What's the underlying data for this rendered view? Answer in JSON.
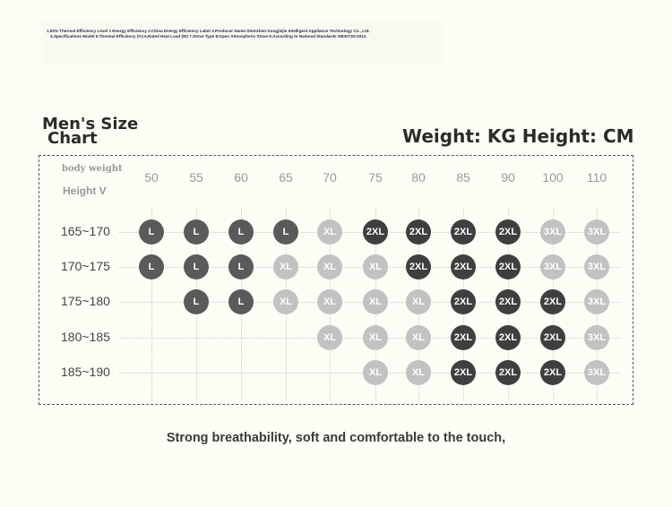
{
  "fineprint": [
    "1.83% Thermal Efficiency Level 1 Energy Efficiency 2.China Energy Efficiency Label 3.Producer Name:Shenzhen Kongjiejie Intelligent Appliance Technology Co., Ltd.",
    "4.Specifications Model 5.Thermal Efficiency (%) 6.Rated Heat Load (W) 7.Stove Type 8.Open Atmospheric Stove 9.According to National Standards GB30720-2014"
  ],
  "title_line1": "Men's Size",
  "title_line2": "Chart",
  "units": "Weight: KG Height: CM",
  "corner": {
    "weight": "body weight",
    "height": "Height V"
  },
  "columns": [
    "50",
    "55",
    "60",
    "65",
    "70",
    "75",
    "80",
    "85",
    "90",
    "100",
    "110"
  ],
  "rows": [
    {
      "label": "165~170",
      "cells": [
        "L",
        "L",
        "L",
        "L",
        "XL",
        "2XL",
        "2XL",
        "2XL",
        "2XL",
        "3XL",
        "3XL"
      ]
    },
    {
      "label": "170~175",
      "cells": [
        "L",
        "L",
        "L",
        "XL",
        "XL",
        "XL",
        "2XL",
        "2XL",
        "2XL",
        "3XL",
        "3XL"
      ]
    },
    {
      "label": "175~180",
      "cells": [
        "",
        "L",
        "L",
        "XL",
        "XL",
        "XL",
        "XL",
        "2XL",
        "2XL",
        "2XL",
        "3XL"
      ]
    },
    {
      "label": "180~185",
      "cells": [
        "",
        "",
        "",
        "",
        "XL",
        "XL",
        "XL",
        "2XL",
        "2XL",
        "2XL",
        "3XL"
      ]
    },
    {
      "label": "185~190",
      "cells": [
        "",
        "",
        "",
        "",
        "",
        "XL",
        "XL",
        "2XL",
        "2XL",
        "2XL",
        "3XL"
      ]
    }
  ],
  "footer": "Strong breathability, soft and comfortable to the touch,"
}
